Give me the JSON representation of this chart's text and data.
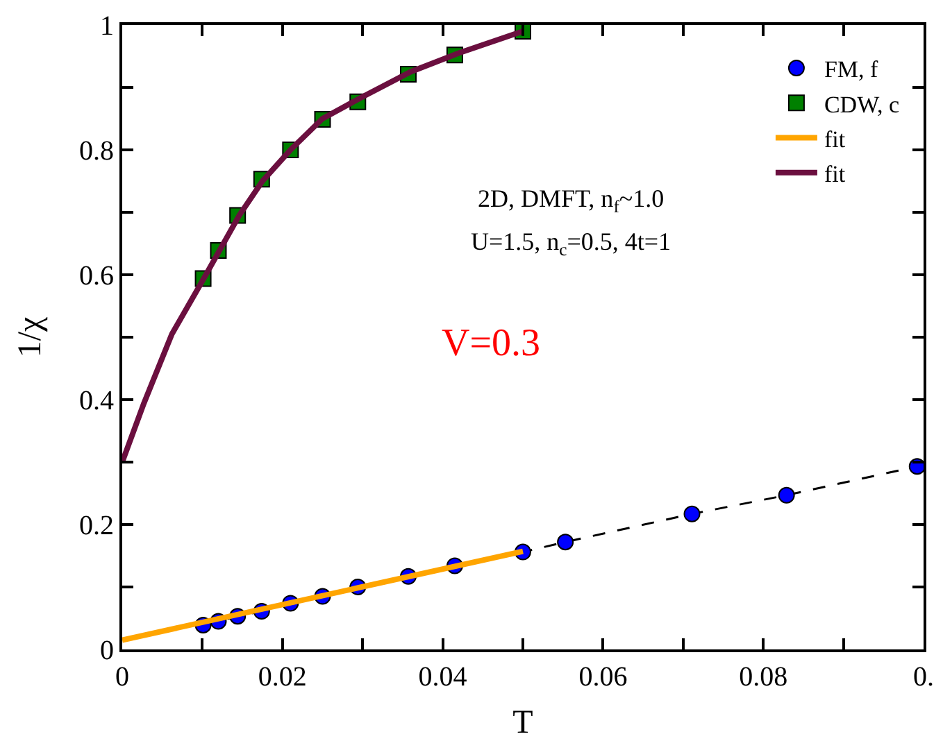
{
  "chart_data": {
    "type": "scatter",
    "xlabel": "T",
    "ylabel": "1/χ",
    "xlim": [
      0,
      0.1
    ],
    "ylim": [
      0,
      1
    ],
    "xticks": [
      0,
      {
        "value": 0.01,
        "label": null
      },
      0.02,
      {
        "value": 0.03,
        "label": null
      },
      0.04,
      {
        "value": 0.05,
        "label": null
      },
      0.06,
      {
        "value": 0.07,
        "label": null
      },
      0.08,
      {
        "value": 0.09,
        "label": null
      },
      {
        "value": 0.1,
        "label": "0."
      }
    ],
    "yticks": [
      0,
      {
        "value": 0.1,
        "label": null
      },
      0.2,
      {
        "value": 0.3,
        "label": null
      },
      0.4,
      {
        "value": 0.5,
        "label": null
      },
      0.6,
      {
        "value": 0.7,
        "label": null
      },
      0.8,
      {
        "value": 0.9,
        "label": null
      },
      1
    ],
    "grid": false,
    "legend": "top right",
    "series": [
      {
        "type": "line",
        "color": "#000000",
        "marker": "none",
        "line_style": "dashed",
        "x": [
          0.0101,
          0.012,
          0.0144,
          0.0174,
          0.021,
          0.025,
          0.0294,
          0.0357,
          0.0415,
          0.05,
          0.0553,
          0.0711,
          0.0829,
          0.0992
        ],
        "values": [
          0.039,
          0.045,
          0.053,
          0.061,
          0.074,
          0.085,
          0.1,
          0.117,
          0.134,
          0.156,
          0.172,
          0.217,
          0.247,
          0.293
        ]
      },
      {
        "name": "FM, f",
        "color": "#0000ff",
        "marker": "circle",
        "line_style": "none",
        "x": [
          0.0101,
          0.012,
          0.0144,
          0.0174,
          0.021,
          0.025,
          0.0294,
          0.0357,
          0.0415,
          0.05,
          0.0553,
          0.0711,
          0.0829,
          0.0992
        ],
        "values": [
          0.039,
          0.045,
          0.053,
          0.061,
          0.074,
          0.085,
          0.1,
          0.117,
          0.134,
          0.156,
          0.172,
          0.217,
          0.247,
          0.293
        ]
      },
      {
        "name": "CDW, c",
        "color": "#008000",
        "marker": "square",
        "line_style": "none",
        "x": [
          0.0101,
          0.012,
          0.0144,
          0.0174,
          0.021,
          0.025,
          0.0294,
          0.0357,
          0.0415,
          0.05
        ],
        "values": [
          0.594,
          0.639,
          0.695,
          0.753,
          0.8,
          0.849,
          0.877,
          0.921,
          0.952,
          0.99
        ]
      },
      {
        "name": "fit",
        "type": "line",
        "color": "#ffa500",
        "marker": "none",
        "line_style": "solid",
        "x": [
          0,
          0.05
        ],
        "values": [
          0.015,
          0.157
        ]
      },
      {
        "name": "fit",
        "type": "line",
        "color": "#6b0f3f",
        "marker": "none",
        "line_style": "solid",
        "x": [
          0,
          0.0027,
          0.0062,
          0.01,
          0.0146,
          0.0175,
          0.021,
          0.025,
          0.03,
          0.036,
          0.042,
          0.05
        ],
        "values": [
          0.3,
          0.394,
          0.505,
          0.59,
          0.695,
          0.75,
          0.8,
          0.85,
          0.885,
          0.925,
          0.955,
          0.99
        ]
      }
    ],
    "annotations": [
      {
        "text": "2D, DMFT, n$_{f}$~1.0"
      },
      {
        "text": "U=1.5, n$_{c}$=0.5, 4t=1"
      },
      {
        "text": "V=0.3"
      }
    ]
  }
}
